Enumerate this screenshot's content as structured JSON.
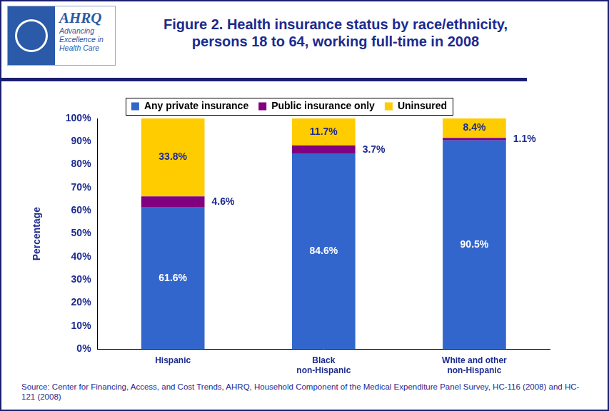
{
  "header": {
    "logo": "AHRQ",
    "logo_tagline": "Advancing Excellence in Health Care"
  },
  "chart_data": {
    "type": "bar",
    "title": "Figure 2. Health insurance status by race/ethnicity, persons 18 to 64, working full-time in 2008",
    "categories": [
      "Hispanic",
      "Black non-Hispanic",
      "White and other non-Hispanic"
    ],
    "series": [
      {
        "name": "Any private insurance",
        "color": "#3366cc",
        "values": [
          61.6,
          84.6,
          90.5
        ],
        "value_labels": [
          "61.6%",
          "84.6%",
          "90.5%"
        ]
      },
      {
        "name": "Public insurance only",
        "color": "#800080",
        "values": [
          4.6,
          3.7,
          1.1
        ],
        "value_labels": [
          "4.6%",
          "3.7%",
          "1.1%"
        ]
      },
      {
        "name": "Uninsured",
        "color": "#ffcc00",
        "values": [
          33.8,
          11.7,
          8.4
        ],
        "value_labels": [
          "33.8%",
          "11.7%",
          "8.4%"
        ]
      }
    ],
    "ylabel": "Percentage",
    "ylim": [
      0,
      100
    ],
    "yticks": [
      {
        "value": 0,
        "label": "0%"
      },
      {
        "value": 10,
        "label": "10%"
      },
      {
        "value": 20,
        "label": "20%"
      },
      {
        "value": 30,
        "label": "30%"
      },
      {
        "value": 40,
        "label": "40%"
      },
      {
        "value": 50,
        "label": "50%"
      },
      {
        "value": 60,
        "label": "60%"
      },
      {
        "value": 70,
        "label": "70%"
      },
      {
        "value": 80,
        "label": "80%"
      },
      {
        "value": 90,
        "label": "90%"
      },
      {
        "value": 100,
        "label": "100%"
      }
    ],
    "stacked": true,
    "grid": false,
    "legend": "top",
    "data_labels": true
  },
  "source": "Source: Center for Financing, Access, and Cost Trends, AHRQ, Household Component of the Medical Expenditure Panel Survey, HC-116 (2008) and HC-121 (2008)"
}
